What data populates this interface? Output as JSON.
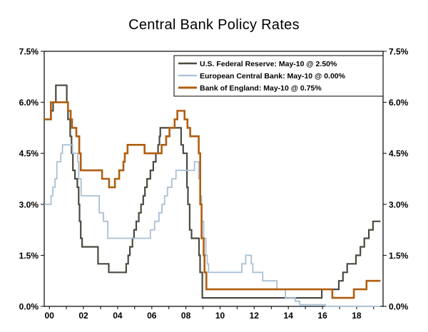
{
  "chart_data": {
    "type": "line",
    "step": true,
    "grid": false,
    "title": "Central Bank Policy Rates",
    "legend_position": "top-inside-right",
    "x_axis": {
      "min": 1999.7,
      "max": 2019.55,
      "minor_tick_every_years": 1,
      "tick_labels": [
        {
          "x": 2000,
          "label": "00"
        },
        {
          "x": 2002,
          "label": "02"
        },
        {
          "x": 2004,
          "label": "04"
        },
        {
          "x": 2006,
          "label": "06"
        },
        {
          "x": 2008,
          "label": "08"
        },
        {
          "x": 2010,
          "label": "10"
        },
        {
          "x": 2012,
          "label": "12"
        },
        {
          "x": 2014,
          "label": "14"
        },
        {
          "x": 2016,
          "label": "16"
        },
        {
          "x": 2018,
          "label": "18"
        }
      ]
    },
    "y_axis": {
      "min": 0,
      "max": 7.5,
      "shown_on": "both",
      "ticks": [
        {
          "value": 0.0,
          "label": "0.0%"
        },
        {
          "value": 1.5,
          "label": "1.5%"
        },
        {
          "value": 3.0,
          "label": "3.0%"
        },
        {
          "value": 4.5,
          "label": "4.5%"
        },
        {
          "value": 6.0,
          "label": "6.0%"
        },
        {
          "value": 7.5,
          "label": "7.5%"
        }
      ]
    },
    "series": [
      {
        "id": "fed",
        "name": "U.S. Federal Reserve",
        "legend_label": "U.S. Federal Reserve: May-10 @ 2.50%",
        "color": "#4b4a41",
        "line_width": 2.2,
        "points": [
          [
            1999.7,
            5.5
          ],
          [
            2000.1,
            5.75
          ],
          [
            2000.22,
            6.0
          ],
          [
            2000.38,
            6.5
          ],
          [
            2001.02,
            6.0
          ],
          [
            2001.09,
            5.5
          ],
          [
            2001.22,
            5.0
          ],
          [
            2001.3,
            4.5
          ],
          [
            2001.38,
            4.0
          ],
          [
            2001.5,
            3.75
          ],
          [
            2001.64,
            3.5
          ],
          [
            2001.72,
            3.0
          ],
          [
            2001.77,
            2.5
          ],
          [
            2001.84,
            2.0
          ],
          [
            2001.92,
            1.75
          ],
          [
            2002.85,
            1.25
          ],
          [
            2003.48,
            1.0
          ],
          [
            2004.5,
            1.25
          ],
          [
            2004.62,
            1.5
          ],
          [
            2004.72,
            1.75
          ],
          [
            2004.87,
            2.0
          ],
          [
            2004.96,
            2.25
          ],
          [
            2005.09,
            2.5
          ],
          [
            2005.24,
            2.75
          ],
          [
            2005.37,
            3.0
          ],
          [
            2005.5,
            3.25
          ],
          [
            2005.6,
            3.5
          ],
          [
            2005.72,
            3.75
          ],
          [
            2005.92,
            4.0
          ],
          [
            2006.09,
            4.25
          ],
          [
            2006.24,
            4.5
          ],
          [
            2006.37,
            4.75
          ],
          [
            2006.45,
            5.0
          ],
          [
            2006.5,
            5.25
          ],
          [
            2007.72,
            4.75
          ],
          [
            2007.84,
            4.5
          ],
          [
            2008.06,
            3.5
          ],
          [
            2008.12,
            3.0
          ],
          [
            2008.22,
            2.25
          ],
          [
            2008.33,
            2.0
          ],
          [
            2008.77,
            1.5
          ],
          [
            2008.83,
            1.0
          ],
          [
            2008.96,
            0.25
          ],
          [
            2015.96,
            0.5
          ],
          [
            2016.96,
            0.75
          ],
          [
            2017.2,
            1.0
          ],
          [
            2017.45,
            1.25
          ],
          [
            2017.96,
            1.5
          ],
          [
            2018.22,
            1.75
          ],
          [
            2018.45,
            2.0
          ],
          [
            2018.72,
            2.25
          ],
          [
            2018.96,
            2.5
          ],
          [
            2019.4,
            2.5
          ]
        ]
      },
      {
        "id": "ecb",
        "name": "European Central Bank",
        "legend_label": "European Central Bank: May-10 @ 0.00%",
        "color": "#a9c0d6",
        "line_width": 1.8,
        "points": [
          [
            1999.7,
            3.0
          ],
          [
            2000.1,
            3.25
          ],
          [
            2000.2,
            3.5
          ],
          [
            2000.33,
            3.75
          ],
          [
            2000.44,
            4.25
          ],
          [
            2000.67,
            4.5
          ],
          [
            2000.77,
            4.75
          ],
          [
            2001.36,
            4.5
          ],
          [
            2001.66,
            4.25
          ],
          [
            2001.72,
            3.75
          ],
          [
            2001.86,
            3.25
          ],
          [
            2002.92,
            2.75
          ],
          [
            2003.17,
            2.5
          ],
          [
            2003.42,
            2.0
          ],
          [
            2005.92,
            2.25
          ],
          [
            2006.17,
            2.5
          ],
          [
            2006.42,
            2.75
          ],
          [
            2006.6,
            3.0
          ],
          [
            2006.75,
            3.25
          ],
          [
            2006.92,
            3.5
          ],
          [
            2007.17,
            3.75
          ],
          [
            2007.42,
            4.0
          ],
          [
            2008.5,
            4.25
          ],
          [
            2008.75,
            3.75
          ],
          [
            2008.84,
            3.25
          ],
          [
            2008.92,
            2.5
          ],
          [
            2009.04,
            2.0
          ],
          [
            2009.17,
            1.5
          ],
          [
            2009.25,
            1.25
          ],
          [
            2009.33,
            1.0
          ],
          [
            2011.27,
            1.25
          ],
          [
            2011.5,
            1.5
          ],
          [
            2011.83,
            1.25
          ],
          [
            2011.92,
            1.0
          ],
          [
            2012.5,
            0.75
          ],
          [
            2013.33,
            0.5
          ],
          [
            2013.83,
            0.25
          ],
          [
            2014.42,
            0.15
          ],
          [
            2014.67,
            0.05
          ],
          [
            2016.17,
            0.0
          ],
          [
            2019.4,
            0.0
          ]
        ]
      },
      {
        "id": "boe",
        "name": "Bank of England",
        "legend_label": "Bank of England: May-10 @ 0.75%",
        "color": "#b05e10",
        "line_width": 2.6,
        "points": [
          [
            1999.7,
            5.5
          ],
          [
            2000.09,
            6.0
          ],
          [
            2001.09,
            5.75
          ],
          [
            2001.25,
            5.5
          ],
          [
            2001.33,
            5.25
          ],
          [
            2001.58,
            5.0
          ],
          [
            2001.75,
            4.5
          ],
          [
            2001.84,
            4.0
          ],
          [
            2003.09,
            3.75
          ],
          [
            2003.5,
            3.5
          ],
          [
            2003.84,
            3.75
          ],
          [
            2004.09,
            4.0
          ],
          [
            2004.34,
            4.25
          ],
          [
            2004.42,
            4.5
          ],
          [
            2004.58,
            4.75
          ],
          [
            2005.58,
            4.5
          ],
          [
            2006.58,
            4.75
          ],
          [
            2006.84,
            5.0
          ],
          [
            2007.04,
            5.25
          ],
          [
            2007.34,
            5.5
          ],
          [
            2007.5,
            5.75
          ],
          [
            2007.92,
            5.5
          ],
          [
            2008.09,
            5.25
          ],
          [
            2008.25,
            5.0
          ],
          [
            2008.75,
            4.5
          ],
          [
            2008.84,
            3.0
          ],
          [
            2008.92,
            2.0
          ],
          [
            2009.04,
            1.5
          ],
          [
            2009.09,
            1.0
          ],
          [
            2009.2,
            0.5
          ],
          [
            2016.58,
            0.25
          ],
          [
            2017.84,
            0.5
          ],
          [
            2018.58,
            0.75
          ],
          [
            2019.4,
            0.75
          ]
        ]
      }
    ]
  }
}
